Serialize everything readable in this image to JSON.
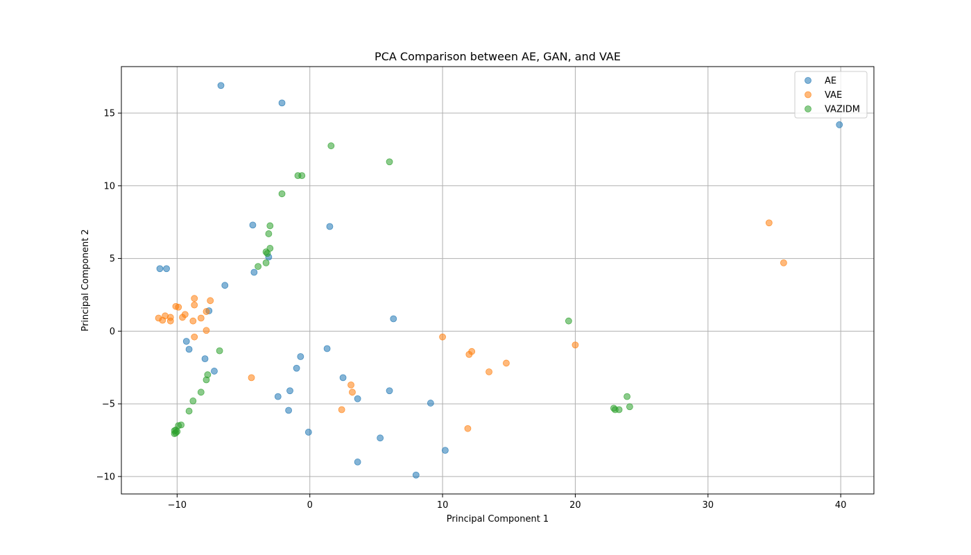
{
  "chart_data": {
    "type": "scatter",
    "title": "PCA Comparison between AE, GAN, and VAE",
    "xlabel": "Principal Component 1",
    "ylabel": "Principal Component 2",
    "xlim": [
      -14.2,
      42.5
    ],
    "ylim": [
      -11.2,
      18.2
    ],
    "xticks": [
      -10,
      0,
      10,
      20,
      30,
      40
    ],
    "yticks": [
      -10,
      -5,
      0,
      5,
      10,
      15
    ],
    "xtick_labels": [
      "−10",
      "0",
      "10",
      "20",
      "30",
      "40"
    ],
    "ytick_labels": [
      "−10",
      "−5",
      "0",
      "5",
      "10",
      "15"
    ],
    "grid": true,
    "legend_position": "top-right",
    "series": [
      {
        "name": "AE",
        "color": "#1f77b4",
        "points": [
          [
            -6.7,
            16.9
          ],
          [
            -2.1,
            15.7
          ],
          [
            39.9,
            14.2
          ],
          [
            -4.3,
            7.3
          ],
          [
            1.5,
            7.2
          ],
          [
            -3.1,
            5.1
          ],
          [
            -11.3,
            4.3
          ],
          [
            -10.8,
            4.3
          ],
          [
            -4.2,
            4.05
          ],
          [
            -6.4,
            3.15
          ],
          [
            -7.6,
            1.4
          ],
          [
            6.3,
            0.85
          ],
          [
            -9.3,
            -0.7
          ],
          [
            -9.1,
            -1.25
          ],
          [
            1.3,
            -1.2
          ],
          [
            -7.9,
            -1.9
          ],
          [
            -0.7,
            -1.75
          ],
          [
            -1.0,
            -2.55
          ],
          [
            -7.2,
            -2.75
          ],
          [
            2.5,
            -3.2
          ],
          [
            -1.5,
            -4.1
          ],
          [
            6.0,
            -4.1
          ],
          [
            -2.4,
            -4.5
          ],
          [
            3.6,
            -4.65
          ],
          [
            9.1,
            -4.95
          ],
          [
            -1.6,
            -5.45
          ],
          [
            5.3,
            -7.35
          ],
          [
            -0.1,
            -6.95
          ],
          [
            10.2,
            -8.2
          ],
          [
            3.6,
            -9.0
          ],
          [
            8.0,
            -9.9
          ]
        ]
      },
      {
        "name": "VAE",
        "color": "#ff7f0e",
        "points": [
          [
            34.6,
            7.45
          ],
          [
            35.7,
            4.7
          ],
          [
            -8.7,
            2.25
          ],
          [
            -7.5,
            2.1
          ],
          [
            -10.1,
            1.7
          ],
          [
            -8.7,
            1.8
          ],
          [
            -9.9,
            1.65
          ],
          [
            -9.4,
            1.15
          ],
          [
            -10.9,
            1.05
          ],
          [
            -11.4,
            0.9
          ],
          [
            -9.6,
            0.95
          ],
          [
            -10.5,
            0.95
          ],
          [
            -8.2,
            0.9
          ],
          [
            -11.1,
            0.75
          ],
          [
            -10.5,
            0.7
          ],
          [
            -8.8,
            0.7
          ],
          [
            -7.8,
            1.35
          ],
          [
            -7.8,
            0.05
          ],
          [
            -8.7,
            -0.4
          ],
          [
            10.0,
            -0.4
          ],
          [
            20.0,
            -0.95
          ],
          [
            12.2,
            -1.4
          ],
          [
            12.0,
            -1.6
          ],
          [
            14.8,
            -2.2
          ],
          [
            13.5,
            -2.8
          ],
          [
            -4.4,
            -3.2
          ],
          [
            3.1,
            -3.7
          ],
          [
            3.2,
            -4.2
          ],
          [
            2.4,
            -5.4
          ],
          [
            11.9,
            -6.7
          ]
        ]
      },
      {
        "name": "VAZIDM",
        "color": "#2ca02c",
        "points": [
          [
            1.6,
            12.75
          ],
          [
            6.0,
            11.65
          ],
          [
            -0.9,
            10.7
          ],
          [
            -0.6,
            10.7
          ],
          [
            -2.1,
            9.45
          ],
          [
            -3.0,
            7.25
          ],
          [
            -3.1,
            6.7
          ],
          [
            -3.0,
            5.7
          ],
          [
            -3.3,
            5.45
          ],
          [
            -3.2,
            5.35
          ],
          [
            -3.3,
            4.7
          ],
          [
            -3.9,
            4.45
          ],
          [
            19.5,
            0.7
          ],
          [
            -6.8,
            -1.35
          ],
          [
            -7.7,
            -3.0
          ],
          [
            -7.8,
            -3.35
          ],
          [
            23.9,
            -4.5
          ],
          [
            -8.2,
            -4.2
          ],
          [
            -8.8,
            -4.8
          ],
          [
            24.1,
            -5.2
          ],
          [
            22.9,
            -5.3
          ],
          [
            23.0,
            -5.4
          ],
          [
            23.3,
            -5.4
          ],
          [
            -9.1,
            -5.5
          ],
          [
            -9.7,
            -6.45
          ],
          [
            -9.9,
            -6.5
          ],
          [
            -10.1,
            -6.8
          ],
          [
            -10.2,
            -6.85
          ],
          [
            -10.0,
            -6.9
          ],
          [
            -10.1,
            -7.0
          ],
          [
            -10.2,
            -7.05
          ]
        ]
      }
    ]
  }
}
